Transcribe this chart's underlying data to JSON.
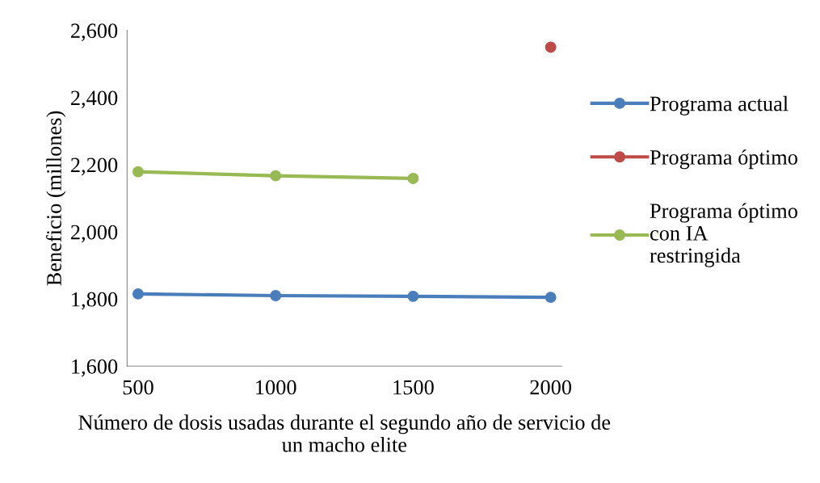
{
  "chart_data": {
    "type": "line",
    "xlabel": "Número de dosis usadas durante el segundo año de servicio de un macho elite",
    "ylabel": "Beneficio (millones)",
    "categories": [
      "500",
      "1000",
      "1500",
      "2000"
    ],
    "series": [
      {
        "name": "Programa actual",
        "color": "#4a7ebb",
        "values": [
          1815,
          1810,
          1808,
          1805
        ]
      },
      {
        "name": "Programa óptimo",
        "color": "#be4b48",
        "values": [
          null,
          null,
          null,
          2550
        ]
      },
      {
        "name": "Programa óptimo con IA restringida",
        "color": "#98b954",
        "values": [
          2179,
          2167,
          2159,
          null
        ]
      }
    ],
    "ylim": [
      1600,
      2600
    ],
    "yticks": [
      {
        "value": 1600,
        "label": "1,600"
      },
      {
        "value": 1800,
        "label": "1,800"
      },
      {
        "value": 2000,
        "label": "2,000"
      },
      {
        "value": 2200,
        "label": "2,200"
      },
      {
        "value": 2400,
        "label": "2,400"
      },
      {
        "value": 2600,
        "label": "2,600"
      }
    ],
    "grid": false,
    "legend": "right",
    "marker": "circle",
    "line_style": "solid"
  }
}
